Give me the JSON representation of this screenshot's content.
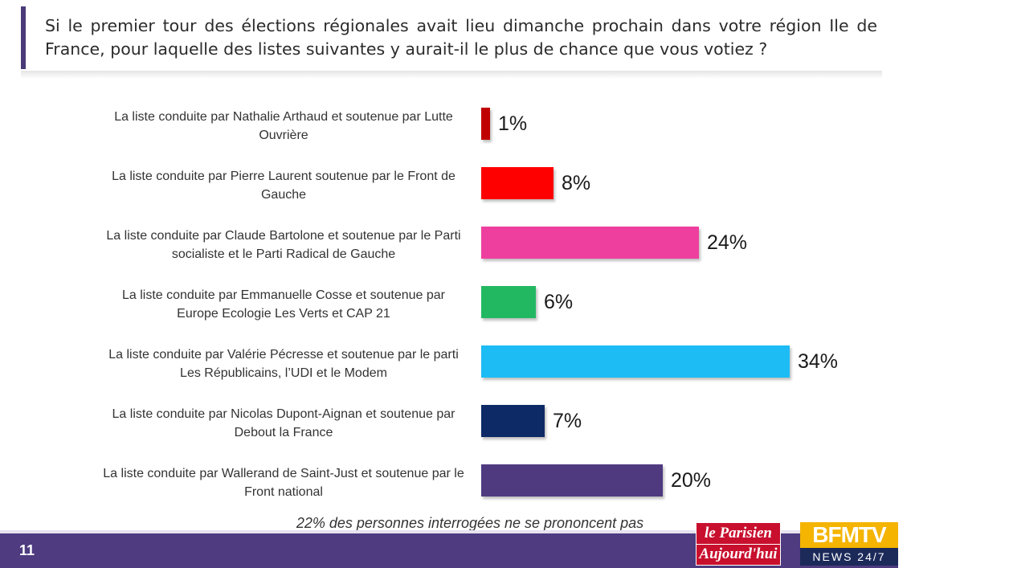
{
  "slide": {
    "question": "Si le premier tour des élections régionales avait lieu dimanche prochain dans votre région Ile de France, pour laquelle des listes suivantes y aurait-il le plus de chance que vous votiez ?",
    "footnote": "22% des personnes interrogées ne se prononcent pas",
    "page_number": "11"
  },
  "logos": {
    "le_parisien_line1": "le Parisien",
    "le_parisien_line2": "Aujourd'hui",
    "bfm_top": "BFMTV",
    "bfm_bottom": "NEWS 24/7"
  },
  "chart_data": {
    "type": "bar",
    "orientation": "horizontal",
    "categories": [
      "La liste conduite par Nathalie Arthaud et soutenue par Lutte Ouvrière",
      "La liste conduite par Pierre Laurent soutenue par le Front de Gauche",
      "La liste conduite par Claude Bartolone et soutenue par le Parti socialiste et le Parti Radical de Gauche",
      "La liste conduite par Emmanuelle Cosse et soutenue par Europe Ecologie Les Verts et CAP 21",
      "La liste conduite par Valérie Pécresse et soutenue par le parti Les Républicains, l’UDI et le Modem",
      "La liste conduite par Nicolas Dupont-Aignan et soutenue par Debout la France",
      "La liste conduite par Wallerand de Saint-Just et soutenue par le Front national"
    ],
    "values": [
      1,
      8,
      24,
      6,
      34,
      7,
      20
    ],
    "value_labels": [
      "1%",
      "8%",
      "24%",
      "6%",
      "34%",
      "7%",
      "20%"
    ],
    "colors": [
      "#c00000",
      "#ff0000",
      "#ee3f9e",
      "#22b862",
      "#1ebcf5",
      "#0e2a66",
      "#4f3a80"
    ],
    "unit": "%",
    "xlim": [
      0,
      34
    ],
    "grid": false,
    "legend": "none"
  }
}
